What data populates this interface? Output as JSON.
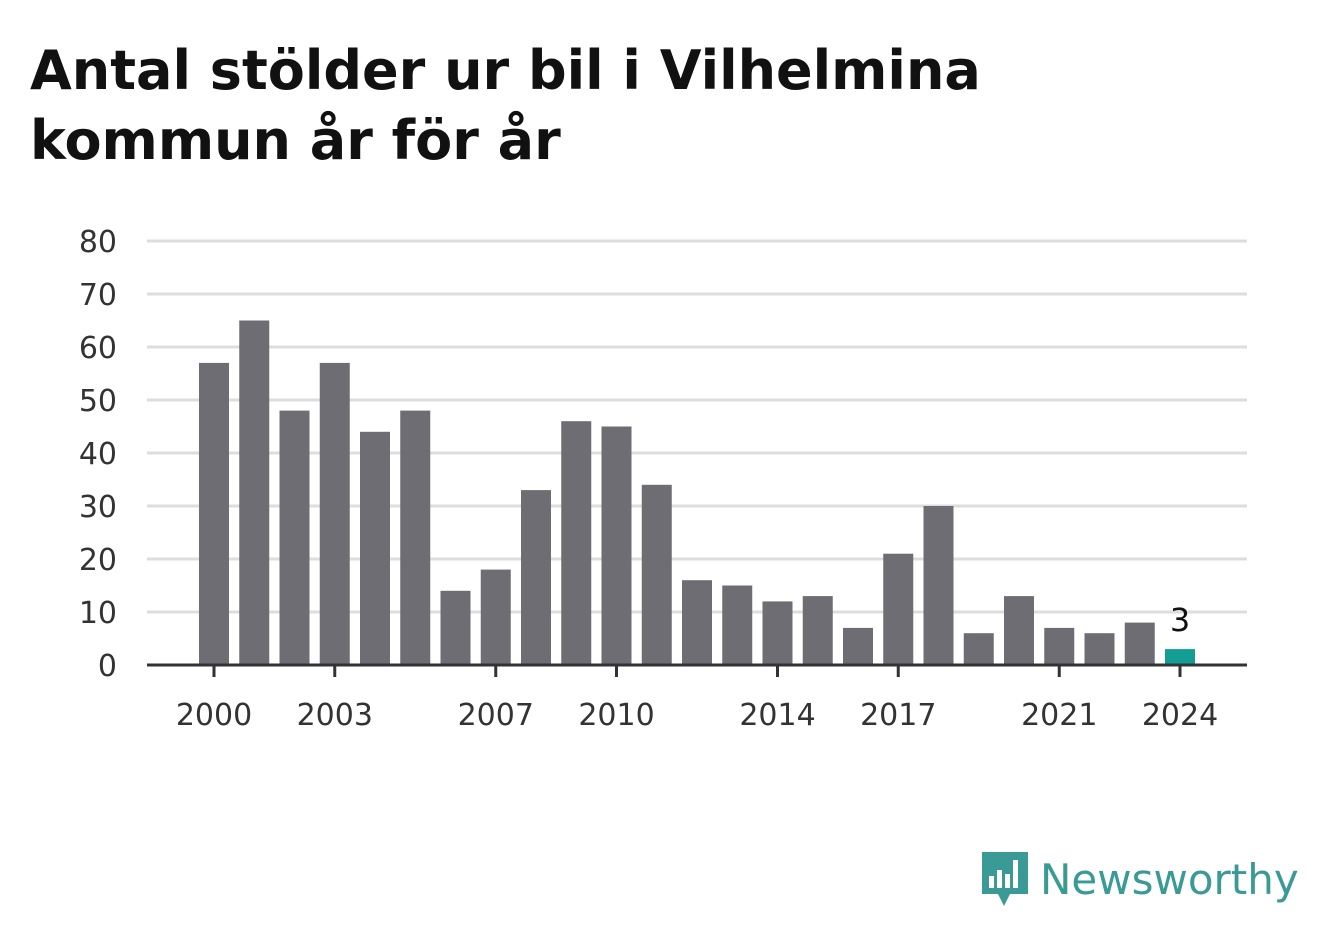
{
  "title": "Antal stölder ur bil i Vilhelmina kommun år för år",
  "brand": {
    "name": "Newsworthy",
    "color": "#3a9a95",
    "icon": "newsworthy-logo-icon"
  },
  "chart_data": {
    "type": "bar",
    "title": "Antal stölder ur bil i Vilhelmina kommun år för år",
    "xlabel": "",
    "ylabel": "",
    "ylim": [
      0,
      80
    ],
    "yticks": [
      0,
      10,
      20,
      30,
      40,
      50,
      60,
      70,
      80
    ],
    "xtick_labels": [
      "2000",
      "2003",
      "2007",
      "2010",
      "2014",
      "2017",
      "2021",
      "2024"
    ],
    "grid": true,
    "colors": {
      "bar": "#6e6d73",
      "highlight": "#139e93",
      "grid": "#dddddd",
      "axis": "#333333"
    },
    "categories": [
      "2000",
      "2001",
      "2002",
      "2003",
      "2004",
      "2005",
      "2006",
      "2007",
      "2008",
      "2009",
      "2010",
      "2011",
      "2012",
      "2013",
      "2014",
      "2015",
      "2016",
      "2017",
      "2018",
      "2019",
      "2020",
      "2021",
      "2022",
      "2023",
      "2024"
    ],
    "values": [
      57,
      65,
      48,
      57,
      44,
      48,
      14,
      18,
      33,
      46,
      45,
      34,
      16,
      15,
      12,
      13,
      7,
      21,
      30,
      6,
      13,
      7,
      6,
      8,
      3
    ],
    "highlight": {
      "category": "2024",
      "label": "3"
    }
  }
}
